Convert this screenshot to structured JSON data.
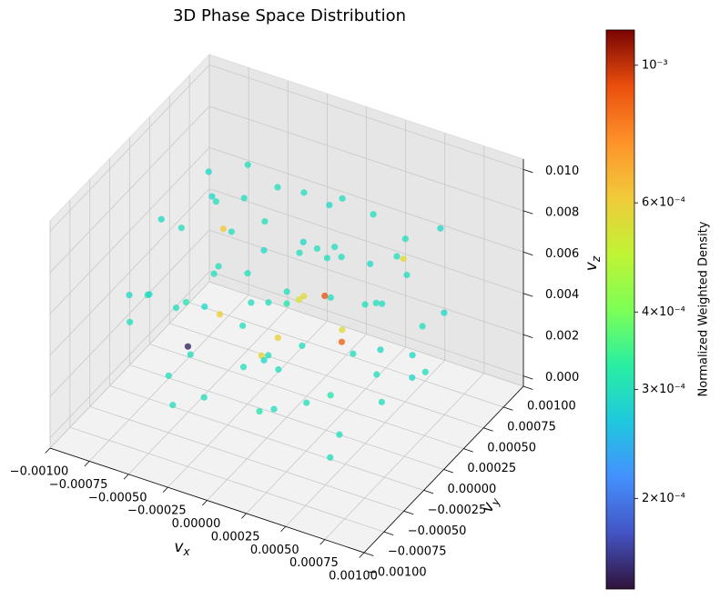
{
  "chart_data": {
    "type": "scatter3d",
    "title": "3D Phase Space Distribution",
    "xlabel": "vx",
    "ylabel": "vy",
    "zlabel": "vz",
    "x": [
      -0.00031,
      0.00015,
      0.00042,
      -0.00055,
      8e-05,
      -0.00012,
      0.0006,
      -0.0007,
      0.00022,
      -0.0004,
      0.00033,
      -5e-05,
      0.00075,
      -0.0002,
      0.0001,
      -0.00085,
      0.0005,
      -0.00038,
      0.00028,
      -0.0006,
      0,
      0.00018,
      -0.00025,
      0.00065,
      -0.00048,
      0.00038,
      -0.0001,
      0.00085,
      -0.00072,
      5e-05,
      -0.0003,
      0.00045,
      -0.00015,
      0.00058,
      -0.00052,
      0.00025,
      -0.00065,
      0.00012,
      -8e-05,
      0.0007,
      -0.00045,
      0.0003,
      -0.00022,
      0.00052,
      -0.00035,
      8e-05,
      -0.00078,
      0.0004,
      -2e-05,
      0.00062,
      -0.00058,
      0.0002,
      -0.00028,
      0.00035,
      -0.0009,
      0.00015,
      -0.00042,
      0.0008,
      -0.00018,
      0.00048,
      -0.00062,
      2e-05,
      -0.0005,
      0.00055,
      -0.00012,
      0.00028,
      -0.0008,
      0.00068,
      -0.00032,
      0.0001,
      -0.00068,
      0.00042,
      -6e-05,
      0.0009,
      -0.0004,
      0.00022,
      -0.00055,
      0.00035,
      -0.00025,
      0.0006
    ],
    "y": [
      0.00012,
      -0.0004,
      0.00022,
      -0.00018,
      0.00035,
      -8e-05,
      -0.00035,
      0.0004,
      0.00055,
      -0.0006,
      -0.0001,
      0.0007,
      0.0001,
      0.00028,
      -0.00075,
      -5e-05,
      0.00048,
      0.00052,
      -0.00055,
      -0.0003,
      0,
      0.00018,
      -0.00042,
      -0.00062,
      0.00015,
      0.00038,
      -0.00025,
      0.0003,
      -0.00055,
      0.0006,
      0.0008,
      -0.0002,
      0.00045,
      5e-05,
      -0.00072,
      -0.0003,
      0.00025,
      0.00085,
      -0.00088,
      0.00055,
      0,
      0.0001,
      0.00065,
      -0.00048,
      -0.00015,
      -0.0005,
      0.0006,
      0.00072,
      0.0002,
      -0.0001,
      0.00045,
      -0.00068,
      0.00032,
      -0.00085,
      0.0002,
      0.0004,
      -0.00038,
      -0.0004,
      8e-05,
      0.00025,
      -0.0001,
      -0.00015,
      0.0007,
      0.00062,
      -0.00062,
      0,
      -0.0004,
      0.0004,
      -0.0008,
      0.00028,
      0.0001,
      -0.00058,
      0.0005,
      -0.0002,
      0.0003,
      -0.00022,
      0.00055,
      0.0008,
      -5e-05,
      0.0002
    ],
    "z": [
      0.0052,
      0.0038,
      0.0071,
      0.0044,
      0.006,
      0.0025,
      0.0055,
      0.008,
      0.0033,
      0.0062,
      0.0018,
      0.0048,
      0.004,
      0.009,
      0.0072,
      0.0035,
      0.0065,
      0.002,
      0.0085,
      0.0012,
      0.005,
      0.0095,
      0.0075,
      0.0028,
      0.0068,
      0.001,
      0.0058,
      0.0055,
      0.0045,
      0.0078,
      0.004,
      0.0092,
      0.003,
      0.0015,
      0.007,
      0.0048,
      0.0022,
      0.0062,
      0.0038,
      0.0082,
      0.0088,
      0.0035,
      0.0072,
      0.0008,
      0.0042,
      0.002,
      0.0058,
      0.0045,
      0.0066,
      0.007,
      0.0052,
      0.0055,
      0.0005,
      0.0042,
      0.006,
      0.0025,
      0.003,
      0.0064,
      0.0082,
      0.0052,
      0.0075,
      0.004,
      0.0035,
      0.0028,
      0.009,
      0.006,
      0.005,
      0.0018,
      0.0025,
      0.0045,
      0.0008,
      0.0036,
      0.0055,
      0.0045,
      0.0095,
      0.0068,
      0.0065,
      0.0058,
      0.0015,
      0.008
    ],
    "c": [
      0.0003,
      0.0003,
      0.00029,
      0.00031,
      0.0003,
      0.00058,
      0.0003,
      0.00029,
      0.0003,
      0.0003,
      0.00031,
      0.0003,
      0.00029,
      0.0003,
      0.0003,
      0.00029,
      0.00057,
      0.0003,
      0.0003,
      0.0003,
      0.00031,
      0.00029,
      0.0003,
      0.0003,
      0.00062,
      0.0003,
      0.0003,
      0.00029,
      0.0003,
      0.0003,
      0.00029,
      0.0003,
      0.00055,
      0.0003,
      0.0003,
      0.0003,
      0.00029,
      0.0003,
      0.0003,
      0.00029,
      0.0003,
      0.00088,
      0.0003,
      0.0003,
      0.0006,
      0.00031,
      0.00029,
      0.0003,
      0.0003,
      0.0003,
      0.0003,
      0.00029,
      0.0003,
      0.0003,
      0.00029,
      0.00056,
      0.0003,
      0.00029,
      0.0003,
      0.0003,
      0.0003,
      0.00059,
      0.00029,
      0.0003,
      0.0003,
      0.0003,
      0.00029,
      0.0003,
      0.0003,
      0.00092,
      0.00015,
      0.0003,
      0.0003,
      0.00029,
      0.0003,
      0.00057,
      0.0003,
      0.0003,
      0.0003,
      0.0003
    ],
    "colormap": "turbo",
    "xlim": [
      -0.001,
      0.001
    ],
    "ylim": [
      -0.001,
      0.001
    ],
    "zlim": [
      -0.0005,
      0.0105
    ],
    "xticks": [
      {
        "value": -0.001,
        "label": "−0.00100"
      },
      {
        "value": -0.00075,
        "label": "−0.00075"
      },
      {
        "value": -0.0005,
        "label": "−0.00050"
      },
      {
        "value": -0.00025,
        "label": "−0.00025"
      },
      {
        "value": 0,
        "label": "0.00000"
      },
      {
        "value": 0.00025,
        "label": "0.00025"
      },
      {
        "value": 0.0005,
        "label": "0.00050"
      },
      {
        "value": 0.00075,
        "label": "0.00075"
      },
      {
        "value": 0.001,
        "label": "0.00100"
      }
    ],
    "yticks": [
      {
        "value": -0.001,
        "label": "−0.00100"
      },
      {
        "value": -0.00075,
        "label": "−0.00075"
      },
      {
        "value": -0.0005,
        "label": "−0.00050"
      },
      {
        "value": -0.00025,
        "label": "−0.00025"
      },
      {
        "value": 0,
        "label": "0.00000"
      },
      {
        "value": 0.00025,
        "label": "0.00025"
      },
      {
        "value": 0.0005,
        "label": "0.00050"
      },
      {
        "value": 0.00075,
        "label": "0.00075"
      },
      {
        "value": 0.001,
        "label": "0.00100"
      }
    ],
    "zticks": [
      {
        "value": 0,
        "label": "0.000"
      },
      {
        "value": 0.002,
        "label": "0.002"
      },
      {
        "value": 0.004,
        "label": "0.004"
      },
      {
        "value": 0.006,
        "label": "0.006"
      },
      {
        "value": 0.008,
        "label": "0.008"
      },
      {
        "value": 0.01,
        "label": "0.010"
      }
    ],
    "grid": true,
    "colorbar": {
      "label": "Normalized Weighted Density",
      "scale": "log",
      "lim": [
        0.000143,
        0.00114
      ],
      "ticks": [
        {
          "value": 0.001,
          "label": "10⁻³"
        },
        {
          "value": 0.0006,
          "label": "6×10⁻⁴"
        },
        {
          "value": 0.0004,
          "label": "4×10⁻⁴"
        },
        {
          "value": 0.0003,
          "label": "3×10⁻⁴"
        },
        {
          "value": 0.0002,
          "label": "2×10⁻⁴"
        }
      ]
    }
  }
}
